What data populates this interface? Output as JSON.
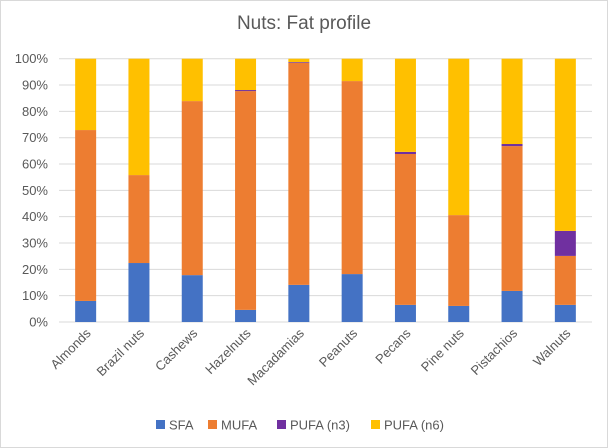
{
  "chart_data": {
    "type": "bar",
    "stacked": "percent",
    "title": "Nuts: Fat profile",
    "xlabel": "",
    "ylabel": "",
    "ylim": [
      0,
      100
    ],
    "yticks": [
      "0%",
      "10%",
      "20%",
      "30%",
      "40%",
      "50%",
      "60%",
      "70%",
      "80%",
      "90%",
      "100%"
    ],
    "grid": true,
    "legend_position": "bottom",
    "categories": [
      "Almonds",
      "Brazil nuts",
      "Cashews",
      "Hazelnuts",
      "Macadamias",
      "Peanuts",
      "Pecans",
      "Pine nuts",
      "Pistachios",
      "Walnuts"
    ],
    "series": [
      {
        "name": "SFA",
        "color": "#4472c4",
        "values": [
          8.0,
          22.4,
          17.8,
          4.6,
          14.1,
          18.2,
          6.5,
          6.1,
          11.8,
          6.5
        ]
      },
      {
        "name": "MUFA",
        "color": "#ed7d31",
        "values": [
          64.9,
          33.4,
          66.1,
          83.1,
          84.3,
          73.3,
          57.3,
          34.5,
          55.0,
          18.6
        ]
      },
      {
        "name": "PUFA (n3)",
        "color": "#7030a0",
        "values": [
          0.0,
          0.0,
          0.0,
          0.4,
          0.3,
          0.0,
          0.8,
          0.0,
          0.8,
          9.5
        ]
      },
      {
        "name": "PUFA (n6)",
        "color": "#ffc000",
        "values": [
          27.1,
          44.2,
          16.1,
          11.9,
          1.3,
          8.5,
          35.4,
          59.4,
          32.4,
          65.4
        ]
      }
    ]
  }
}
